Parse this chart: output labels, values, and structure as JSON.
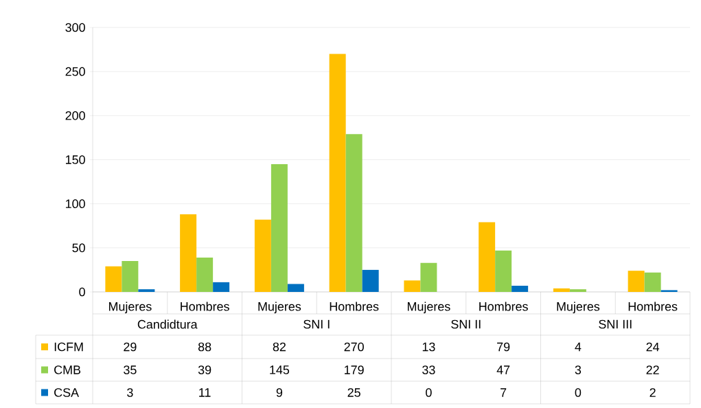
{
  "chart_data": {
    "type": "bar",
    "categories": [
      "Mujeres",
      "Hombres",
      "Mujeres",
      "Hombres",
      "Mujeres",
      "Hombres",
      "Mujeres",
      "Hombres"
    ],
    "annotations": [
      "Candidtura",
      "SNI I",
      "SNI II",
      "SNI III"
    ],
    "series": [
      {
        "name": "ICFM",
        "color": "#ffc000",
        "values": [
          29,
          88,
          82,
          270,
          13,
          79,
          4,
          24
        ]
      },
      {
        "name": "CMB",
        "color": "#92d050",
        "values": [
          35,
          39,
          145,
          179,
          33,
          47,
          3,
          22
        ]
      },
      {
        "name": "CSA",
        "color": "#0070c0",
        "values": [
          3,
          11,
          9,
          25,
          0,
          7,
          0,
          2
        ]
      }
    ],
    "ylim": [
      0,
      300
    ],
    "yticks": [
      0,
      50,
      100,
      150,
      200,
      250,
      300
    ],
    "grid": "y",
    "legend": "bottom left",
    "data_labels": true
  }
}
